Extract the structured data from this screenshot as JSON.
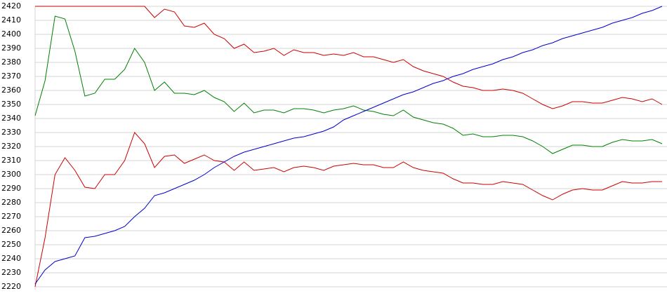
{
  "chart_data": {
    "type": "line",
    "x": [
      0,
      1,
      2,
      3,
      4,
      5,
      6,
      7,
      8,
      9,
      10,
      11,
      12,
      13,
      14,
      15,
      16,
      17,
      18,
      19,
      20,
      21,
      22,
      23,
      24,
      25,
      26,
      27,
      28,
      29,
      30,
      31,
      32,
      33,
      34,
      35,
      36,
      37,
      38,
      39,
      40,
      41,
      42,
      43,
      44,
      45,
      46,
      47,
      48,
      49,
      50,
      51,
      52,
      53,
      54,
      55,
      56,
      57,
      58,
      59,
      60,
      61,
      62,
      63
    ],
    "xlim": [
      0,
      63
    ],
    "ylim": [
      2220,
      2420
    ],
    "yticks": [
      2220,
      2230,
      2240,
      2250,
      2260,
      2270,
      2280,
      2290,
      2300,
      2310,
      2320,
      2330,
      2340,
      2350,
      2360,
      2370,
      2380,
      2390,
      2400,
      2410,
      2420
    ],
    "grid": true,
    "series": [
      {
        "color": "#cc0000",
        "values": [
          2420,
          2420,
          2420,
          2420,
          2420,
          2420,
          2420,
          2420,
          2420,
          2420,
          2420,
          2420,
          2412,
          2418,
          2416,
          2406,
          2405,
          2408,
          2400,
          2397,
          2390,
          2393,
          2387,
          2388,
          2390,
          2385,
          2389,
          2387,
          2387,
          2385,
          2386,
          2385,
          2387,
          2384,
          2384,
          2382,
          2380,
          2382,
          2377,
          2374,
          2372,
          2370,
          2366,
          2363,
          2362,
          2360,
          2360,
          2361,
          2360,
          2358,
          2354,
          2350,
          2347,
          2349,
          2352,
          2352,
          2351,
          2351,
          2353,
          2355,
          2354,
          2352,
          2354,
          2350
        ]
      },
      {
        "color": "#008000",
        "values": [
          2342,
          2367,
          2413,
          2411,
          2388,
          2356,
          2358,
          2368,
          2368,
          2375,
          2390,
          2380,
          2360,
          2366,
          2358,
          2358,
          2357,
          2360,
          2355,
          2352,
          2345,
          2351,
          2344,
          2346,
          2346,
          2344,
          2347,
          2347,
          2346,
          2344,
          2346,
          2347,
          2349,
          2346,
          2345,
          2343,
          2342,
          2346,
          2341,
          2339,
          2337,
          2336,
          2333,
          2328,
          2329,
          2327,
          2327,
          2328,
          2328,
          2327,
          2324,
          2320,
          2315,
          2318,
          2321,
          2321,
          2320,
          2320,
          2323,
          2325,
          2324,
          2324,
          2325,
          2322
        ]
      },
      {
        "color": "#cc0000",
        "values": [
          2220,
          2255,
          2300,
          2312,
          2303,
          2291,
          2290,
          2300,
          2300,
          2310,
          2330,
          2322,
          2305,
          2313,
          2314,
          2308,
          2311,
          2314,
          2310,
          2309,
          2303,
          2309,
          2303,
          2304,
          2305,
          2302,
          2305,
          2306,
          2305,
          2303,
          2306,
          2307,
          2308,
          2307,
          2307,
          2305,
          2305,
          2309,
          2305,
          2303,
          2302,
          2301,
          2297,
          2294,
          2294,
          2293,
          2293,
          2295,
          2294,
          2293,
          2289,
          2285,
          2282,
          2286,
          2289,
          2290,
          2289,
          2289,
          2292,
          2295,
          2294,
          2294,
          2295,
          2295
        ]
      },
      {
        "color": "#0000cc",
        "values": [
          2222,
          2232,
          2238,
          2240,
          2242,
          2255,
          2256,
          2258,
          2260,
          2263,
          2270,
          2276,
          2285,
          2287,
          2290,
          2293,
          2296,
          2300,
          2305,
          2309,
          2313,
          2316,
          2318,
          2320,
          2322,
          2324,
          2326,
          2327,
          2329,
          2331,
          2334,
          2339,
          2342,
          2345,
          2348,
          2351,
          2354,
          2357,
          2359,
          2362,
          2365,
          2367,
          2370,
          2372,
          2375,
          2377,
          2379,
          2382,
          2384,
          2387,
          2389,
          2392,
          2394,
          2397,
          2399,
          2401,
          2403,
          2405,
          2408,
          2410,
          2412,
          2415,
          2417,
          2420
        ]
      }
    ]
  }
}
